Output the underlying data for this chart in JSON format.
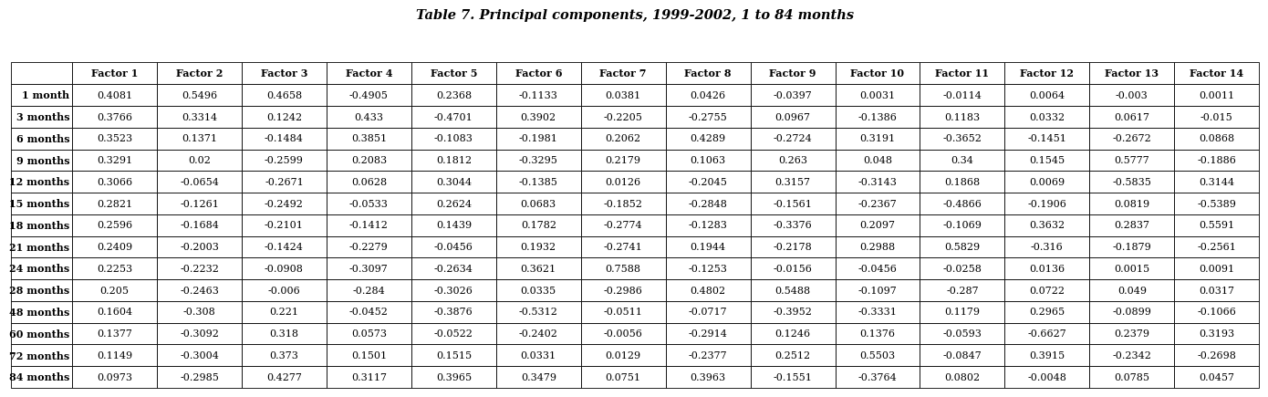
{
  "title": "Table 7. Principal components, 1999-2002, 1 to 84 months",
  "columns": [
    "",
    "Factor 1",
    "Factor 2",
    "Factor 3",
    "Factor 4",
    "Factor 5",
    "Factor 6",
    "Factor 7",
    "Factor 8",
    "Factor 9",
    "Factor 10",
    "Factor 11",
    "Factor 12",
    "Factor 13",
    "Factor 14"
  ],
  "rows": [
    [
      "1 month",
      "0.4081",
      "0.5496",
      "0.4658",
      "-0.4905",
      "0.2368",
      "-0.1133",
      "0.0381",
      "0.0426",
      "-0.0397",
      "0.0031",
      "-0.0114",
      "0.0064",
      "-0.003",
      "0.0011"
    ],
    [
      "3 months",
      "0.3766",
      "0.3314",
      "0.1242",
      "0.433",
      "-0.4701",
      "0.3902",
      "-0.2205",
      "-0.2755",
      "0.0967",
      "-0.1386",
      "0.1183",
      "0.0332",
      "0.0617",
      "-0.015"
    ],
    [
      "6 months",
      "0.3523",
      "0.1371",
      "-0.1484",
      "0.3851",
      "-0.1083",
      "-0.1981",
      "0.2062",
      "0.4289",
      "-0.2724",
      "0.3191",
      "-0.3652",
      "-0.1451",
      "-0.2672",
      "0.0868"
    ],
    [
      "9 months",
      "0.3291",
      "0.02",
      "-0.2599",
      "0.2083",
      "0.1812",
      "-0.3295",
      "0.2179",
      "0.1063",
      "0.263",
      "0.048",
      "0.34",
      "0.1545",
      "0.5777",
      "-0.1886"
    ],
    [
      "12 months",
      "0.3066",
      "-0.0654",
      "-0.2671",
      "0.0628",
      "0.3044",
      "-0.1385",
      "0.0126",
      "-0.2045",
      "0.3157",
      "-0.3143",
      "0.1868",
      "0.0069",
      "-0.5835",
      "0.3144"
    ],
    [
      "15 months",
      "0.2821",
      "-0.1261",
      "-0.2492",
      "-0.0533",
      "0.2624",
      "0.0683",
      "-0.1852",
      "-0.2848",
      "-0.1561",
      "-0.2367",
      "-0.4866",
      "-0.1906",
      "0.0819",
      "-0.5389"
    ],
    [
      "18 months",
      "0.2596",
      "-0.1684",
      "-0.2101",
      "-0.1412",
      "0.1439",
      "0.1782",
      "-0.2774",
      "-0.1283",
      "-0.3376",
      "0.2097",
      "-0.1069",
      "0.3632",
      "0.2837",
      "0.5591"
    ],
    [
      "21 months",
      "0.2409",
      "-0.2003",
      "-0.1424",
      "-0.2279",
      "-0.0456",
      "0.1932",
      "-0.2741",
      "0.1944",
      "-0.2178",
      "0.2988",
      "0.5829",
      "-0.316",
      "-0.1879",
      "-0.2561"
    ],
    [
      "24 months",
      "0.2253",
      "-0.2232",
      "-0.0908",
      "-0.3097",
      "-0.2634",
      "0.3621",
      "0.7588",
      "-0.1253",
      "-0.0156",
      "-0.0456",
      "-0.0258",
      "0.0136",
      "0.0015",
      "0.0091"
    ],
    [
      "28 months",
      "0.205",
      "-0.2463",
      "-0.006",
      "-0.284",
      "-0.3026",
      "0.0335",
      "-0.2986",
      "0.4802",
      "0.5488",
      "-0.1097",
      "-0.287",
      "0.0722",
      "0.049",
      "0.0317"
    ],
    [
      "48 months",
      "0.1604",
      "-0.308",
      "0.221",
      "-0.0452",
      "-0.3876",
      "-0.5312",
      "-0.0511",
      "-0.0717",
      "-0.3952",
      "-0.3331",
      "0.1179",
      "0.2965",
      "-0.0899",
      "-0.1066"
    ],
    [
      "60 months",
      "0.1377",
      "-0.3092",
      "0.318",
      "0.0573",
      "-0.0522",
      "-0.2402",
      "-0.0056",
      "-0.2914",
      "0.1246",
      "0.1376",
      "-0.0593",
      "-0.6627",
      "0.2379",
      "0.3193"
    ],
    [
      "72 months",
      "0.1149",
      "-0.3004",
      "0.373",
      "0.1501",
      "0.1515",
      "0.0331",
      "0.0129",
      "-0.2377",
      "0.2512",
      "0.5503",
      "-0.0847",
      "0.3915",
      "-0.2342",
      "-0.2698"
    ],
    [
      "84 months",
      "0.0973",
      "-0.2985",
      "0.4277",
      "0.3117",
      "0.3965",
      "0.3479",
      "0.0751",
      "0.3963",
      "-0.1551",
      "-0.3764",
      "0.0802",
      "-0.0048",
      "0.0785",
      "0.0457"
    ]
  ],
  "bg_color": "#ffffff",
  "border_color": "#000000",
  "text_color": "#000000",
  "title_fontsize": 10.5,
  "cell_fontsize": 8.0,
  "header_fontsize": 8.0,
  "col_widths_raw": [
    0.72,
    1.0,
    1.0,
    1.0,
    1.0,
    1.0,
    1.0,
    1.0,
    1.0,
    1.0,
    1.0,
    1.0,
    1.0,
    1.0,
    1.0
  ]
}
